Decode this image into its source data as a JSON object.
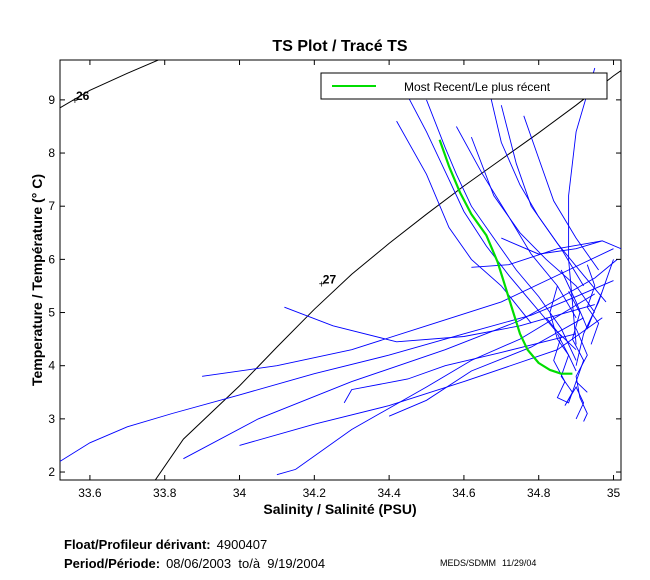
{
  "chart_data": {
    "type": "line",
    "title": "TS Plot / Tracé TS",
    "xlabel": "Salinity / Salinité (PSU)",
    "ylabel": "Temperature / Température (° C)",
    "xlim": [
      33.52,
      35.02
    ],
    "ylim": [
      1.85,
      9.75
    ],
    "xticks": [
      33.6,
      33.8,
      34,
      34.2,
      34.4,
      34.6,
      34.8,
      35
    ],
    "xtick_labels": [
      "33.6",
      "33.8",
      "34",
      "34.2",
      "34.4",
      "34.6",
      "34.8",
      "35"
    ],
    "yticks": [
      2,
      3,
      4,
      5,
      6,
      7,
      8,
      9
    ],
    "ytick_labels": [
      "2",
      "3",
      "4",
      "5",
      "6",
      "7",
      "8",
      "9"
    ],
    "grid": false,
    "legend": {
      "position": "top-right",
      "entries": [
        "Most Recent/Le plus récent"
      ]
    },
    "colors": {
      "profiles": "#0000ff",
      "recent": "#00dd00",
      "isopycnal": "#000000"
    },
    "isopycnals": [
      {
        "label": "26",
        "label_at": [
          33.56,
          9.0
        ],
        "points": [
          [
            33.52,
            8.85
          ],
          [
            33.6,
            9.18
          ],
          [
            33.7,
            9.5
          ],
          [
            33.8,
            9.8
          ]
        ]
      },
      {
        "label": "27",
        "label_at": [
          34.22,
          5.55
        ],
        "points": [
          [
            33.76,
            1.7
          ],
          [
            33.85,
            2.62
          ],
          [
            34.0,
            3.62
          ],
          [
            34.1,
            4.35
          ],
          [
            34.2,
            5.06
          ],
          [
            34.3,
            5.72
          ],
          [
            34.4,
            6.3
          ],
          [
            34.5,
            6.85
          ],
          [
            34.6,
            7.38
          ],
          [
            34.7,
            7.88
          ],
          [
            34.8,
            8.38
          ],
          [
            34.9,
            8.9
          ],
          [
            35.0,
            9.45
          ],
          [
            35.05,
            9.7
          ]
        ]
      }
    ],
    "series": [
      {
        "name": "Most Recent/Le plus récent",
        "role": "recent",
        "points": [
          [
            34.535,
            8.25
          ],
          [
            34.56,
            7.75
          ],
          [
            34.59,
            7.25
          ],
          [
            34.62,
            6.85
          ],
          [
            34.66,
            6.45
          ],
          [
            34.69,
            5.95
          ],
          [
            34.71,
            5.5
          ],
          [
            34.73,
            5.05
          ],
          [
            34.75,
            4.6
          ],
          [
            34.77,
            4.3
          ],
          [
            34.8,
            4.05
          ],
          [
            34.83,
            3.92
          ],
          [
            34.86,
            3.85
          ],
          [
            34.89,
            3.85
          ]
        ]
      },
      {
        "name": "Profile",
        "role": "profile",
        "points": [
          [
            33.52,
            2.2
          ],
          [
            33.6,
            2.55
          ],
          [
            33.7,
            2.85
          ],
          [
            33.82,
            3.1
          ],
          [
            34.0,
            3.45
          ],
          [
            34.2,
            3.85
          ],
          [
            34.4,
            4.2
          ],
          [
            34.6,
            4.6
          ],
          [
            34.78,
            4.95
          ],
          [
            34.9,
            5.3
          ],
          [
            35.0,
            5.6
          ]
        ]
      },
      {
        "name": "Profile",
        "role": "profile",
        "points": [
          [
            33.85,
            2.25
          ],
          [
            34.05,
            3.0
          ],
          [
            34.3,
            3.7
          ],
          [
            34.55,
            4.3
          ],
          [
            34.75,
            4.85
          ],
          [
            34.95,
            5.65
          ],
          [
            35.01,
            6.0
          ]
        ]
      },
      {
        "name": "Profile",
        "role": "profile",
        "points": [
          [
            34.0,
            2.5
          ],
          [
            34.2,
            2.9
          ],
          [
            34.4,
            3.25
          ],
          [
            34.6,
            3.7
          ],
          [
            34.85,
            4.3
          ],
          [
            34.97,
            4.9
          ]
        ]
      },
      {
        "name": "Profile",
        "role": "profile",
        "points": [
          [
            34.1,
            1.95
          ],
          [
            34.15,
            2.05
          ],
          [
            34.3,
            2.8
          ],
          [
            34.5,
            3.6
          ],
          [
            34.62,
            4.1
          ],
          [
            34.75,
            4.5
          ],
          [
            34.95,
            5.35
          ]
        ]
      },
      {
        "name": "Profile",
        "role": "profile",
        "points": [
          [
            33.9,
            3.8
          ],
          [
            34.1,
            4.0
          ],
          [
            34.3,
            4.3
          ],
          [
            34.5,
            4.75
          ],
          [
            34.7,
            5.2
          ],
          [
            34.88,
            5.8
          ],
          [
            35.0,
            6.2
          ]
        ]
      },
      {
        "name": "Profile",
        "role": "profile",
        "points": [
          [
            34.12,
            5.1
          ],
          [
            34.25,
            4.75
          ],
          [
            34.42,
            4.45
          ],
          [
            34.6,
            4.55
          ],
          [
            34.75,
            4.75
          ],
          [
            34.95,
            5.15
          ]
        ]
      },
      {
        "name": "Profile",
        "role": "profile",
        "points": [
          [
            34.28,
            3.3
          ],
          [
            34.3,
            3.55
          ],
          [
            34.45,
            3.75
          ],
          [
            34.55,
            4.0
          ],
          [
            34.7,
            4.25
          ],
          [
            34.9,
            4.6
          ]
        ]
      },
      {
        "name": "Profile",
        "role": "profile",
        "points": [
          [
            34.4,
            3.05
          ],
          [
            34.5,
            3.35
          ],
          [
            34.62,
            3.9
          ],
          [
            34.78,
            4.35
          ],
          [
            34.92,
            4.9
          ]
        ]
      },
      {
        "name": "Profile",
        "role": "profile",
        "points": [
          [
            34.44,
            9.2
          ],
          [
            34.5,
            8.4
          ],
          [
            34.56,
            7.5
          ],
          [
            34.6,
            6.9
          ],
          [
            34.66,
            6.25
          ],
          [
            34.72,
            5.7
          ],
          [
            34.78,
            5.2
          ],
          [
            34.84,
            4.7
          ],
          [
            34.9,
            4.3
          ]
        ]
      },
      {
        "name": "Profile",
        "role": "profile",
        "points": [
          [
            34.5,
            9.0
          ],
          [
            34.55,
            8.1
          ],
          [
            34.58,
            7.6
          ],
          [
            34.62,
            7.0
          ],
          [
            34.68,
            6.4
          ],
          [
            34.74,
            5.8
          ],
          [
            34.8,
            5.3
          ],
          [
            34.86,
            4.7
          ],
          [
            34.9,
            4.1
          ]
        ]
      },
      {
        "name": "Profile",
        "role": "profile",
        "points": [
          [
            34.58,
            8.5
          ],
          [
            34.65,
            7.6
          ],
          [
            34.72,
            6.8
          ],
          [
            34.78,
            6.1
          ],
          [
            34.85,
            5.5
          ],
          [
            34.9,
            4.9
          ]
        ]
      },
      {
        "name": "Profile",
        "role": "profile",
        "points": [
          [
            34.62,
            8.3
          ],
          [
            34.68,
            7.2
          ],
          [
            34.75,
            6.5
          ],
          [
            34.82,
            6.0
          ],
          [
            34.9,
            5.5
          ],
          [
            34.95,
            5.0
          ]
        ]
      },
      {
        "name": "Profile",
        "role": "profile",
        "points": [
          [
            34.66,
            9.4
          ],
          [
            34.7,
            8.2
          ],
          [
            34.75,
            7.4
          ],
          [
            34.8,
            6.8
          ],
          [
            34.86,
            6.2
          ],
          [
            34.92,
            5.5
          ]
        ]
      },
      {
        "name": "Profile",
        "role": "profile",
        "points": [
          [
            34.7,
            8.9
          ],
          [
            34.74,
            7.8
          ],
          [
            34.78,
            7.0
          ],
          [
            34.85,
            6.3
          ],
          [
            34.92,
            5.7
          ],
          [
            34.98,
            5.2
          ]
        ]
      },
      {
        "name": "Profile",
        "role": "profile",
        "points": [
          [
            34.76,
            8.7
          ],
          [
            34.8,
            7.9
          ],
          [
            34.84,
            7.1
          ],
          [
            34.9,
            6.4
          ],
          [
            34.96,
            5.8
          ]
        ]
      },
      {
        "name": "Profile",
        "role": "profile",
        "points": [
          [
            34.62,
            5.85
          ],
          [
            34.72,
            5.9
          ],
          [
            34.85,
            6.2
          ],
          [
            34.97,
            6.35
          ],
          [
            35.02,
            6.2
          ]
        ]
      },
      {
        "name": "Profile",
        "role": "profile",
        "points": [
          [
            34.7,
            6.4
          ],
          [
            34.8,
            6.1
          ],
          [
            34.9,
            6.2
          ],
          [
            34.97,
            6.35
          ]
        ]
      },
      {
        "name": "Profile",
        "role": "profile",
        "points": [
          [
            34.85,
            5.5
          ],
          [
            34.83,
            5.0
          ],
          [
            34.85,
            4.5
          ],
          [
            34.88,
            4.2
          ],
          [
            34.9,
            3.9
          ]
        ]
      },
      {
        "name": "Profile",
        "role": "profile",
        "points": [
          [
            34.95,
            9.6
          ],
          [
            34.9,
            8.4
          ],
          [
            34.88,
            7.2
          ],
          [
            34.88,
            6.0
          ],
          [
            34.89,
            5.2
          ],
          [
            34.9,
            4.4
          ]
        ]
      },
      {
        "name": "Profile",
        "role": "profile",
        "points": [
          [
            34.86,
            5.8
          ],
          [
            34.9,
            5.2
          ],
          [
            34.93,
            4.7
          ],
          [
            34.97,
            5.4
          ],
          [
            35.0,
            6.0
          ],
          [
            34.96,
            5.2
          ],
          [
            34.92,
            4.6
          ],
          [
            34.9,
            4.0
          ]
        ]
      },
      {
        "name": "Profile",
        "role": "profile",
        "points": [
          [
            34.85,
            4.6
          ],
          [
            34.88,
            4.2
          ],
          [
            34.86,
            3.8
          ],
          [
            34.89,
            3.5
          ],
          [
            34.87,
            3.25
          ],
          [
            34.9,
            3.6
          ],
          [
            34.92,
            3.3
          ],
          [
            34.9,
            3.0
          ]
        ]
      },
      {
        "name": "Profile",
        "role": "profile",
        "points": [
          [
            34.9,
            4.7
          ],
          [
            34.93,
            4.2
          ],
          [
            34.9,
            3.8
          ],
          [
            34.91,
            3.4
          ],
          [
            34.93,
            3.1
          ],
          [
            34.92,
            2.95
          ]
        ]
      },
      {
        "name": "Profile",
        "role": "profile",
        "points": [
          [
            34.82,
            4.9
          ],
          [
            34.86,
            4.55
          ],
          [
            34.84,
            4.1
          ],
          [
            34.87,
            3.7
          ],
          [
            34.85,
            3.4
          ],
          [
            34.88,
            3.3
          ],
          [
            34.9,
            3.7
          ]
        ]
      },
      {
        "name": "Profile",
        "role": "profile",
        "points": [
          [
            34.88,
            5.4
          ],
          [
            34.91,
            5.0
          ],
          [
            34.89,
            4.5
          ],
          [
            34.92,
            4.1
          ],
          [
            34.9,
            3.7
          ],
          [
            34.93,
            3.5
          ]
        ]
      },
      {
        "name": "Profile",
        "role": "profile",
        "points": [
          [
            34.93,
            5.9
          ],
          [
            34.95,
            5.5
          ],
          [
            34.93,
            5.1
          ],
          [
            34.96,
            4.8
          ],
          [
            34.94,
            4.4
          ]
        ]
      },
      {
        "name": "Profile",
        "role": "profile",
        "points": [
          [
            34.42,
            8.6
          ],
          [
            34.5,
            7.6
          ],
          [
            34.56,
            6.6
          ],
          [
            34.62,
            6.0
          ],
          [
            34.7,
            5.5
          ],
          [
            34.78,
            4.8
          ]
        ]
      }
    ]
  },
  "footer": {
    "float_label": "Float/Profileur dérivant:",
    "float_value": "4900407",
    "period_label": "Period/Période:",
    "period_value": "08/06/2003  to/à  9/19/2004",
    "credit_org": "MEDS/SDMM",
    "credit_date": "11/29/04"
  }
}
